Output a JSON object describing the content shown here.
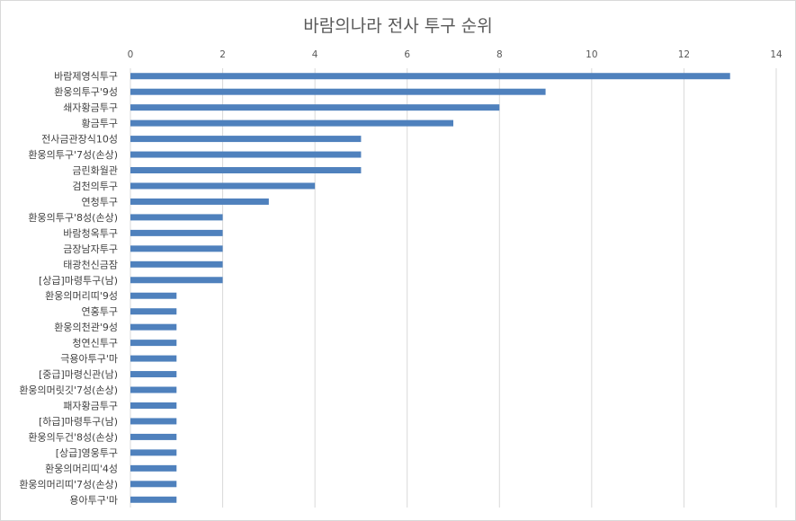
{
  "chart_data": {
    "type": "bar",
    "orientation": "horizontal",
    "title": "바람의나라 전사 투구 순위",
    "xlabel": "",
    "ylabel": "",
    "xlim": [
      0,
      14
    ],
    "x_ticks": [
      0,
      2,
      4,
      6,
      8,
      10,
      12,
      14
    ],
    "x_axis_position": "top",
    "grid": true,
    "legend": "none",
    "bar_color": "#4f81bd",
    "categories": [
      "바람제영식투구",
      "환웅의투구'9성",
      "쇄자황금투구",
      "황금투구",
      "전사금관장식10성",
      "환웅의투구'7성(손상)",
      "금린화월관",
      "검천의투구",
      "연청투구",
      "환웅의투구'8성(손상)",
      "바람청옥투구",
      "금장남자투구",
      "태광천신금잠",
      "[상급]마령투구(남)",
      "환웅의머리띠'9성",
      "연홍투구",
      "환웅의천관'9성",
      "청연신투구",
      "극용아투구'마",
      "[중급]마령신관(남)",
      "환웅의머릿깃'7성(손상)",
      "패자황금투구",
      "[하급]마령투구(남)",
      "환웅의두건'8성(손상)",
      "[상급]영웅투구",
      "환웅의머리띠'4성",
      "환웅의머리띠'7성(손상)",
      "용아투구'마"
    ],
    "values": [
      13,
      9,
      8,
      7,
      5,
      5,
      5,
      4,
      3,
      2,
      2,
      2,
      2,
      2,
      1,
      1,
      1,
      1,
      1,
      1,
      1,
      1,
      1,
      1,
      1,
      1,
      1,
      1
    ]
  }
}
